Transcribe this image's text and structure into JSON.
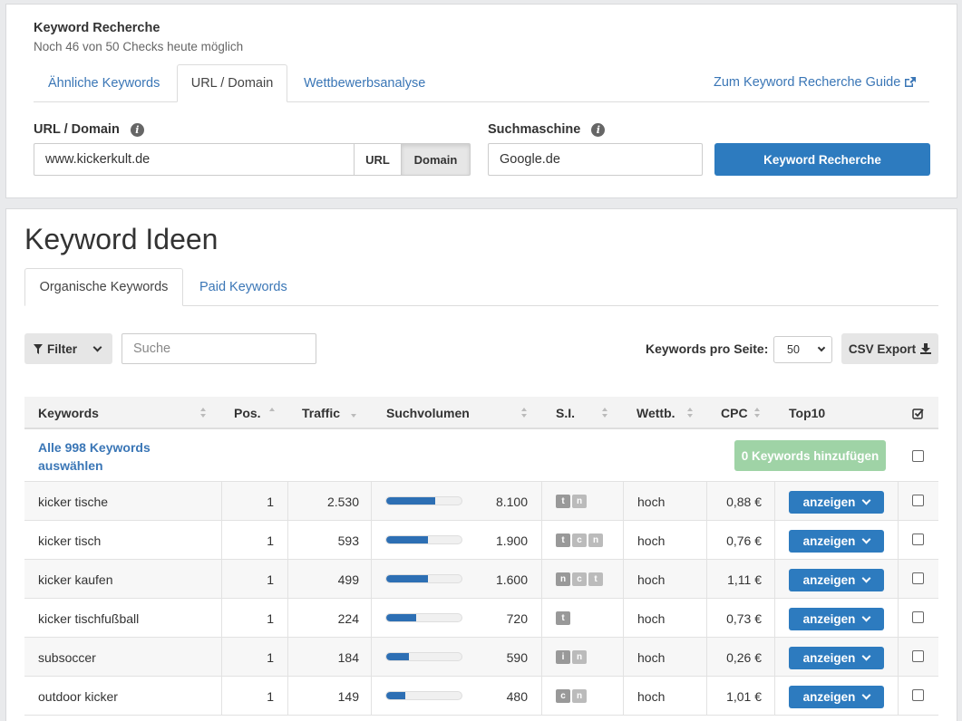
{
  "top": {
    "title": "Keyword Recherche",
    "subtitle": "Noch 46 von 50 Checks heute möglich",
    "tabs": [
      "Ähnliche Keywords",
      "URL / Domain",
      "Wettbewerbsanalyse"
    ],
    "guide_link": "Zum Keyword Recherche Guide",
    "url_label": "URL / Domain",
    "url_value": "www.kickerkult.de",
    "url_btn": "URL",
    "domain_btn": "Domain",
    "engine_label": "Suchmaschine",
    "engine_value": "Google.de",
    "submit_btn": "Keyword Recherche"
  },
  "main": {
    "title": "Keyword Ideen",
    "tabs": [
      "Organische Keywords",
      "Paid Keywords"
    ],
    "filter_btn": "Filter",
    "search_placeholder": "Suche",
    "per_page_label": "Keywords pro Seite:",
    "per_page_value": "50",
    "export_btn": "CSV Export",
    "columns": [
      "Keywords",
      "Pos.",
      "Traffic",
      "Suchvolumen",
      "S.I.",
      "Wettb.",
      "CPC",
      "Top10"
    ],
    "select_all": "Alle 998 Keywords auswählen",
    "add_btn": "0 Keywords hinzufügen",
    "show_btn": "anzeigen",
    "rows": [
      {
        "keyword": "kicker tische",
        "pos": "1",
        "traffic": "2.530",
        "volume": "8.100",
        "volume_bar": 0.65,
        "si": [
          "t",
          "n"
        ],
        "comp": "hoch",
        "cpc": "0,88 €"
      },
      {
        "keyword": "kicker tisch",
        "pos": "1",
        "traffic": "593",
        "volume": "1.900",
        "volume_bar": 0.55,
        "si": [
          "t",
          "c",
          "n"
        ],
        "comp": "hoch",
        "cpc": "0,76 €"
      },
      {
        "keyword": "kicker kaufen",
        "pos": "1",
        "traffic": "499",
        "volume": "1.600",
        "volume_bar": 0.55,
        "si": [
          "n",
          "c",
          "t"
        ],
        "comp": "hoch",
        "cpc": "1,11 €"
      },
      {
        "keyword": "kicker tischfußball",
        "pos": "1",
        "traffic": "224",
        "volume": "720",
        "volume_bar": 0.4,
        "si": [
          "t"
        ],
        "comp": "hoch",
        "cpc": "0,73 €"
      },
      {
        "keyword": "subsoccer",
        "pos": "1",
        "traffic": "184",
        "volume": "590",
        "volume_bar": 0.3,
        "si": [
          "i",
          "n"
        ],
        "comp": "hoch",
        "cpc": "0,26 €"
      },
      {
        "keyword": "outdoor kicker",
        "pos": "1",
        "traffic": "149",
        "volume": "480",
        "volume_bar": 0.25,
        "si": [
          "c",
          "n"
        ],
        "comp": "hoch",
        "cpc": "1,01 €"
      }
    ]
  },
  "colors": {
    "accent": "#2d7bbf",
    "link": "#3a76b6",
    "success_disabled": "#9fd3a6"
  }
}
